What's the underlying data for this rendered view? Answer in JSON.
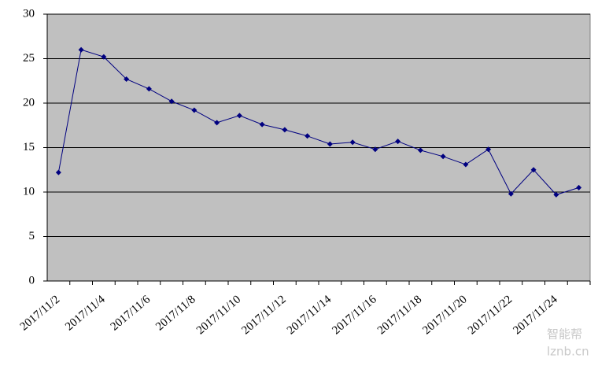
{
  "chart_data": {
    "type": "line",
    "categories": [
      "2017/11/2",
      null,
      "2017/11/4",
      null,
      "2017/11/6",
      null,
      "2017/11/8",
      null,
      "2017/11/10",
      null,
      "2017/11/12",
      null,
      "2017/11/14",
      null,
      "2017/11/16",
      null,
      "2017/11/18",
      null,
      "2017/11/20",
      null,
      "2017/11/22",
      null,
      "2017/11/24",
      null
    ],
    "values": [
      12.2,
      26.0,
      25.2,
      22.7,
      21.6,
      20.2,
      19.2,
      17.8,
      18.6,
      17.6,
      17.0,
      16.3,
      15.4,
      15.6,
      14.8,
      15.7,
      14.7,
      14.0,
      13.1,
      14.8,
      9.8,
      12.5,
      9.7,
      10.5
    ],
    "color": "#000080",
    "ylim": [
      0,
      30
    ],
    "yticks": [
      0,
      5,
      10,
      15,
      20,
      25,
      30
    ],
    "grid": true
  },
  "watermark": {
    "text": "智能帮",
    "url": "lznb.cn"
  }
}
